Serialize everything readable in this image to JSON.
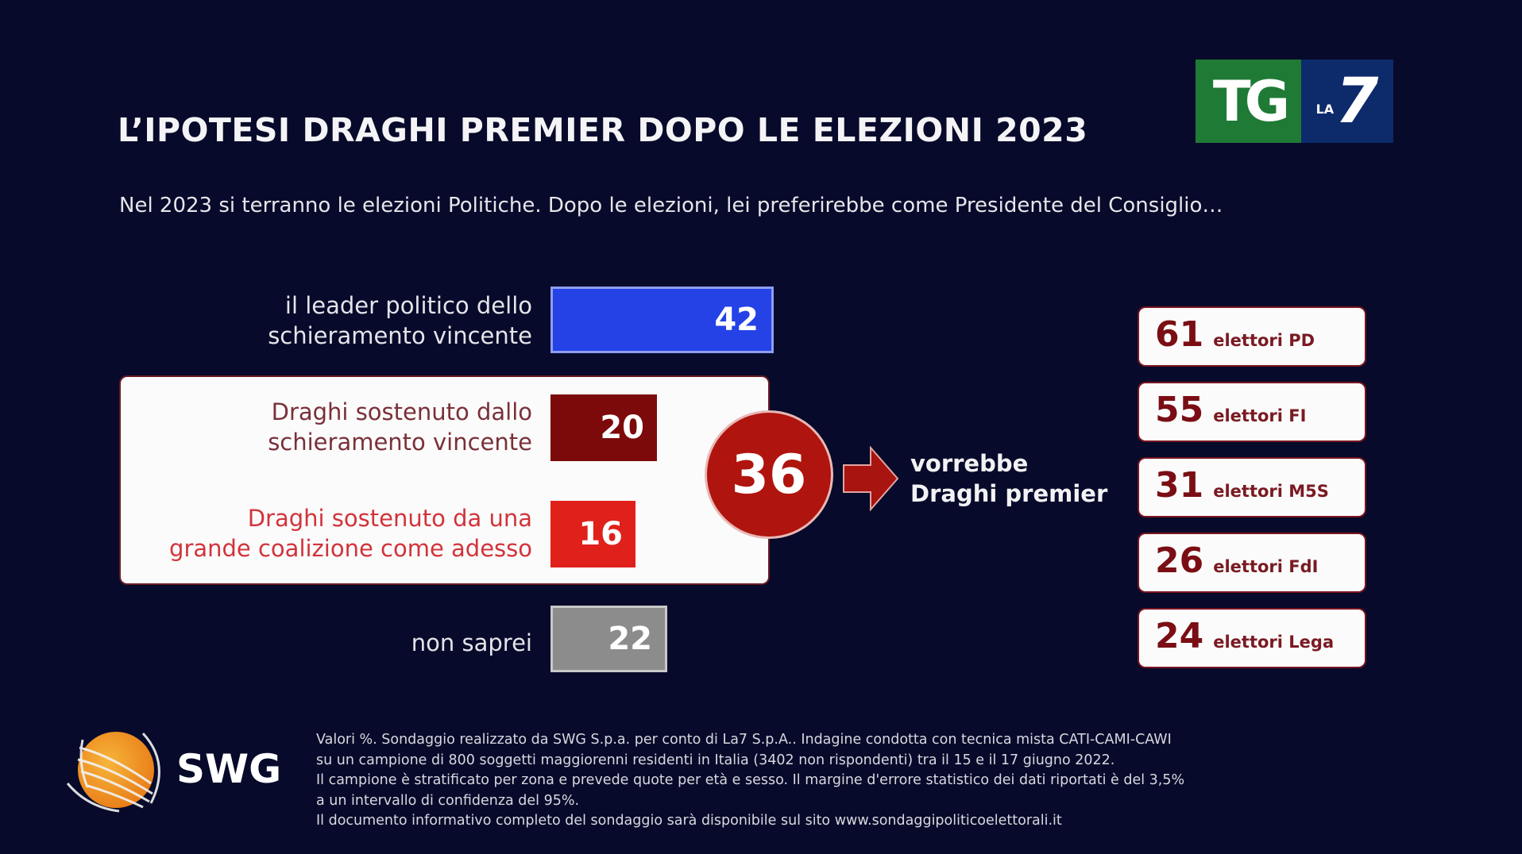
{
  "title": "L’IPOTESI DRAGHI PREMIER DOPO LE ELEZIONI 2023",
  "subtitle": "Nel 2023 si terranno le elezioni Politiche. Dopo le elezioni, lei preferirebbe come Presidente del Consiglio…",
  "logo": {
    "tg": "TG",
    "la": "LA",
    "seven": "7",
    "green": "#1f7a36",
    "blue": "#0d2a6b"
  },
  "chart_data": {
    "type": "bar",
    "orientation": "horizontal",
    "title": "L’IPOTESI DRAGHI PREMIER DOPO LE ELEZIONI 2023",
    "unit": "%",
    "categories": [
      {
        "line1": "il leader politico dello",
        "line2": "schieramento vincente"
      },
      {
        "line1": "Draghi sostenuto dallo",
        "line2": "schieramento vincente"
      },
      {
        "line1": "Draghi sostenuto da una",
        "line2": "grande coalizione come adesso"
      },
      {
        "line1": "non saprei",
        "line2": ""
      }
    ],
    "values": [
      42,
      20,
      16,
      22
    ],
    "colors": [
      "#2442e6",
      "#7d0a0a",
      "#e0201a",
      "#8c8c8c"
    ],
    "group_total": {
      "value": "36",
      "line1": "vorrebbe",
      "line2": "Draghi premier"
    },
    "breakdown": [
      {
        "value": "61",
        "label": "elettori PD"
      },
      {
        "value": "55",
        "label": "elettori FI"
      },
      {
        "value": "31",
        "label": "elettori M5S"
      },
      {
        "value": "26",
        "label": "elettori FdI"
      },
      {
        "value": "24",
        "label": "elettori Lega"
      }
    ]
  },
  "swg": {
    "name": "SWG"
  },
  "footnote": [
    "Valori %. Sondaggio realizzato da SWG S.p.a. per conto di La7 S.p.A.. Indagine condotta con tecnica mista CATI-CAMI-CAWI",
    "su un campione di 800 soggetti maggiorenni residenti in Italia (3402 non rispondenti) tra il 15 e il 17 giugno 2022.",
    "Il campione è stratificato per zona e prevede quote per età e sesso. Il margine d'errore statistico dei dati riportati è del 3,5%",
    "a un intervallo di confidenza del 95%.",
    "Il documento informativo completo del sondaggio sarà disponibile sul sito www.sondaggipoliticoelettorali.it"
  ]
}
